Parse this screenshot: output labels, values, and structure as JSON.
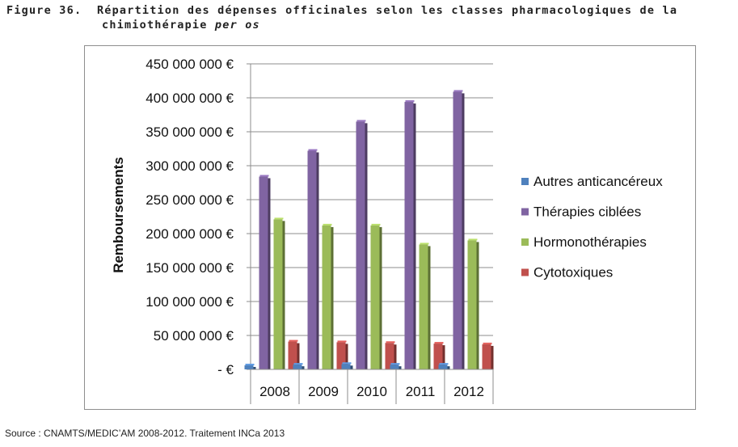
{
  "figure": {
    "label": "Figure 36.",
    "title_line1": "Répartition des dépenses officinales selon les classes pharmacologiques de la",
    "title_line2_main": "chimiothérapie",
    "title_line2_italic": "per os"
  },
  "source": "Source : CNAMTS/MEDIC’AM 2008-2012. Traitement INCa 2013",
  "chart_data": {
    "type": "bar",
    "categories": [
      "2008",
      "2009",
      "2010",
      "2011",
      "2012"
    ],
    "ylabel": "Remboursements",
    "xlabel": "",
    "ylim": [
      0,
      450000000
    ],
    "y_ticks": [
      {
        "value": 0,
        "label": "- €"
      },
      {
        "value": 50000000,
        "label": "50 000 000 €"
      },
      {
        "value": 100000000,
        "label": "100 000 000 €"
      },
      {
        "value": 150000000,
        "label": "150 000 000 €"
      },
      {
        "value": 200000000,
        "label": "200 000 000 €"
      },
      {
        "value": 250000000,
        "label": "250 000 000 €"
      },
      {
        "value": 300000000,
        "label": "300 000 000 €"
      },
      {
        "value": 350000000,
        "label": "350 000 000 €"
      },
      {
        "value": 400000000,
        "label": "400 000 000 €"
      },
      {
        "value": 450000000,
        "label": "450 000 000 €"
      }
    ],
    "grid": true,
    "legend_position": "right",
    "series": [
      {
        "name": "Autres anticancéreux",
        "color": "#4f81bd",
        "values": [
          6000000,
          7000000,
          8000000,
          7000000,
          7000000
        ]
      },
      {
        "name": "Thérapies ciblées",
        "color": "#8064a2",
        "values": [
          284000000,
          322000000,
          365000000,
          394000000,
          409000000
        ]
      },
      {
        "name": "Hormonothérapies",
        "color": "#9bbb59",
        "values": [
          221000000,
          212000000,
          212000000,
          184000000,
          190000000
        ]
      },
      {
        "name": "Cytotoxiques",
        "color": "#c0504d",
        "values": [
          41000000,
          40000000,
          39000000,
          38000000,
          37000000
        ]
      }
    ]
  }
}
